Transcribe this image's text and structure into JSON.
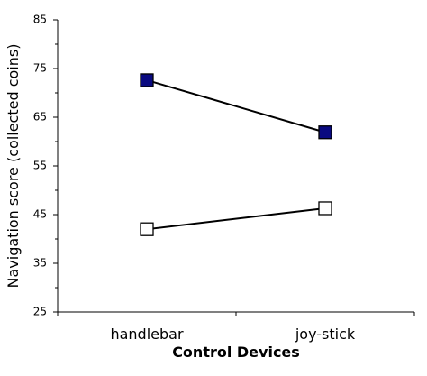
{
  "chart_data": {
    "type": "line",
    "x_label": "Control Devices",
    "y_label": "Navigation score (collected coins)",
    "categories": [
      "handlebar",
      "joy-stick"
    ],
    "series": [
      {
        "color": "#0a0a80",
        "values": [
          72.6,
          61.9
        ]
      },
      {
        "color": "#ffffff",
        "values": [
          42.0,
          46.3
        ]
      }
    ],
    "line_color": "#000000",
    "ylim": [
      25,
      85
    ],
    "yticks": [
      25,
      35,
      45,
      55,
      65,
      75,
      85
    ],
    "yminorticks": [
      30,
      40,
      50,
      60,
      70,
      80
    ],
    "grid": false
  }
}
